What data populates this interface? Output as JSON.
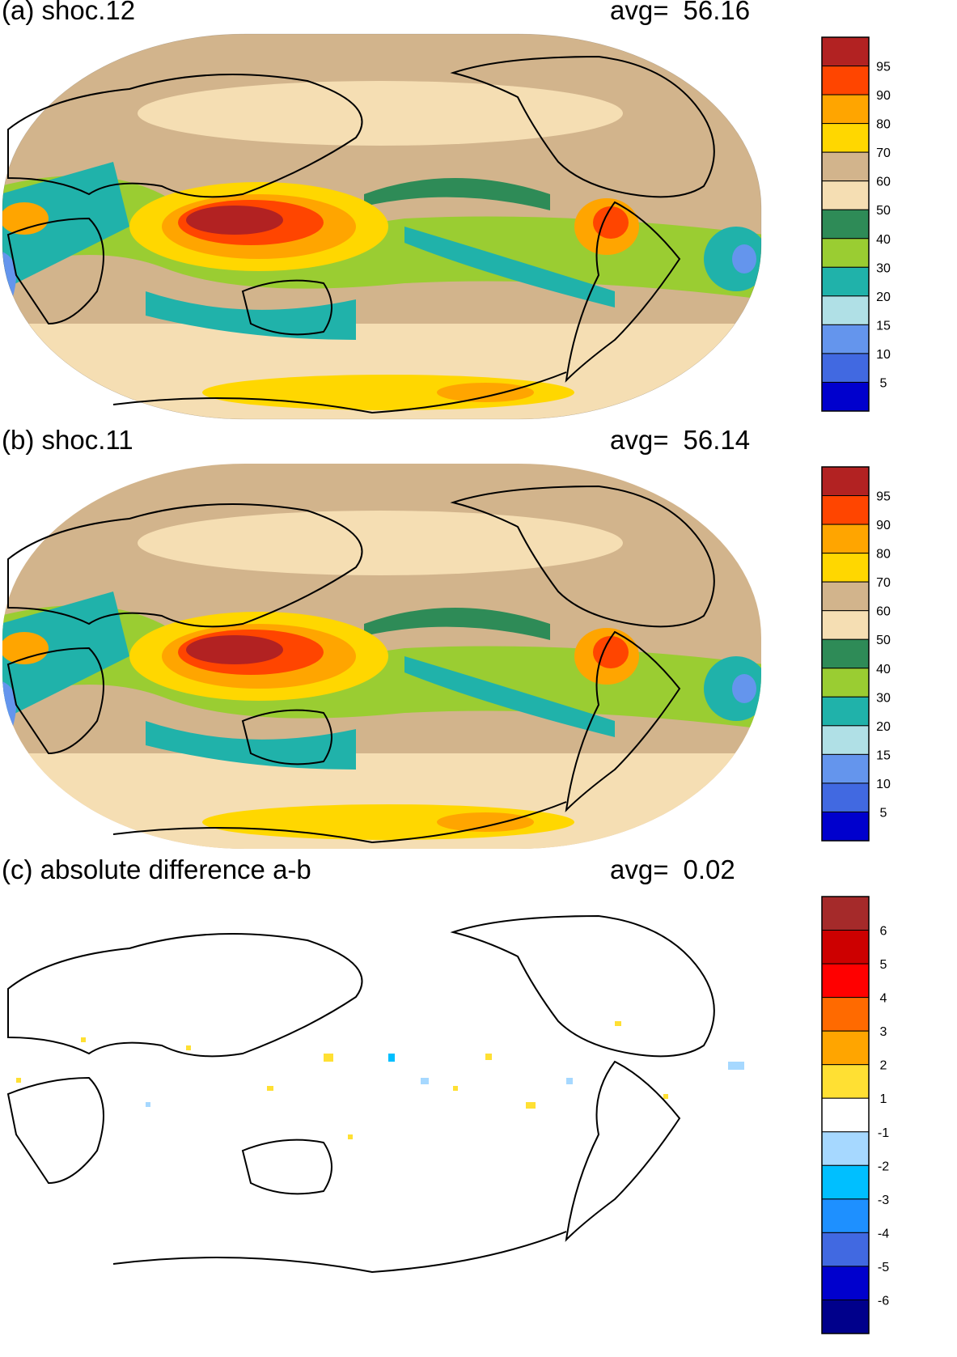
{
  "panels": [
    {
      "title": "(a) shoc.12",
      "avg_label": "avg=",
      "avg_value": "56.16",
      "colorbar": {
        "labels": [
          "95",
          "90",
          "80",
          "70",
          "60",
          "50",
          "40",
          "30",
          "20",
          "15",
          "10",
          "5"
        ],
        "colors": [
          "#b22222",
          "#ff4500",
          "#ffa500",
          "#ffd700",
          "#d2b48c",
          "#f5deb3",
          "#2e8b57",
          "#9acd32",
          "#20b2aa",
          "#b0e0e6",
          "#6495ed",
          "#4169e1",
          "#0000cd"
        ]
      }
    },
    {
      "title": "(b) shoc.11",
      "avg_label": "avg=",
      "avg_value": "56.14",
      "colorbar": {
        "labels": [
          "95",
          "90",
          "80",
          "70",
          "60",
          "50",
          "40",
          "30",
          "20",
          "15",
          "10",
          "5"
        ],
        "colors": [
          "#b22222",
          "#ff4500",
          "#ffa500",
          "#ffd700",
          "#d2b48c",
          "#f5deb3",
          "#2e8b57",
          "#9acd32",
          "#20b2aa",
          "#b0e0e6",
          "#6495ed",
          "#4169e1",
          "#0000cd"
        ]
      }
    },
    {
      "title": "(c) absolute difference a-b",
      "avg_label": "avg=",
      "avg_value": "0.02",
      "colorbar": {
        "labels": [
          "6",
          "5",
          "4",
          "3",
          "2",
          "1",
          "-1",
          "-2",
          "-3",
          "-4",
          "-5",
          "-6"
        ],
        "colors": [
          "#a52a2a",
          "#cd0000",
          "#ff0000",
          "#ff6a00",
          "#ffa500",
          "#ffe033",
          "#ffffff",
          "#a6d8ff",
          "#00bfff",
          "#1e90ff",
          "#4169e1",
          "#0000cd",
          "#00008b"
        ]
      }
    }
  ]
}
